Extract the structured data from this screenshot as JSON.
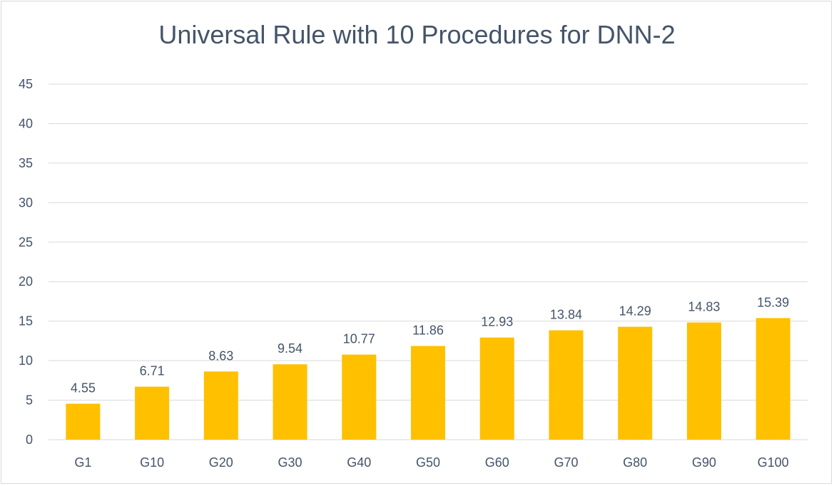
{
  "chart_data": {
    "type": "bar",
    "title": "Universal Rule with 10 Procedures for DNN-2",
    "xlabel": "",
    "ylabel": "",
    "categories": [
      "G1",
      "G10",
      "G20",
      "G30",
      "G40",
      "G50",
      "G60",
      "G70",
      "G80",
      "G90",
      "G100"
    ],
    "series": [
      {
        "values": [
          4.55,
          6.71,
          8.63,
          9.54,
          10.77,
          11.86,
          12.93,
          13.84,
          14.29,
          14.83,
          15.39
        ]
      }
    ],
    "ylim": [
      0,
      45
    ],
    "yticks": [
      0,
      5,
      10,
      15,
      20,
      25,
      30,
      35,
      40,
      45
    ],
    "grid": true,
    "legend": "none",
    "bar_color": "#ffc000",
    "gridline_color": "#d9d9d9",
    "text_color": "#44546a"
  }
}
